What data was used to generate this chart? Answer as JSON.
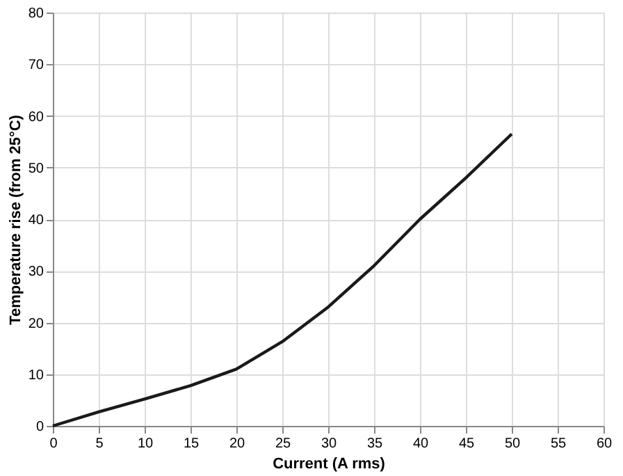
{
  "chart_data": {
    "type": "line",
    "xlabel": "Current (A rms)",
    "ylabel": "Temperature rise (from 25°C)",
    "x": [
      0,
      5,
      10,
      15,
      20,
      25,
      30,
      35,
      40,
      45,
      50
    ],
    "series": [
      {
        "color": "#1a1a1a",
        "values": [
          0,
          2.7,
          5.2,
          7.8,
          11,
          16.3,
          23,
          31,
          40,
          48,
          56.5
        ]
      }
    ],
    "xlim": [
      0,
      60
    ],
    "xticks": [
      0,
      5,
      10,
      15,
      20,
      25,
      30,
      35,
      40,
      45,
      50,
      55,
      60
    ],
    "ylim": [
      0,
      80
    ],
    "yticks": [
      0,
      10,
      20,
      30,
      40,
      50,
      60,
      70,
      80
    ],
    "grid": true,
    "marker": "none",
    "line_style": "solid",
    "legend": false
  }
}
